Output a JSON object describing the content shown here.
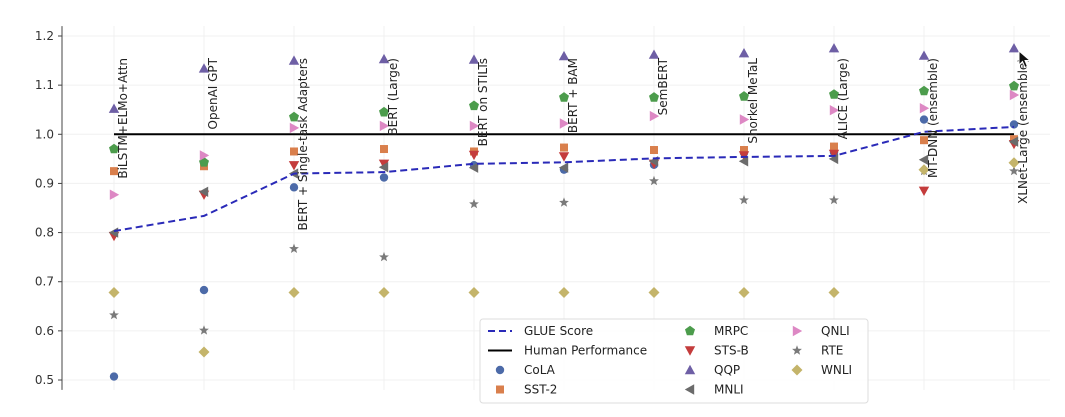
{
  "chart_data": {
    "type": "scatter",
    "title": "",
    "xlabel": "",
    "ylabel": "",
    "ylim": [
      0.48,
      1.22
    ],
    "yticks": [
      "0.5",
      "0.6",
      "0.7",
      "0.8",
      "0.9",
      "1.0",
      "1.1",
      "1.2"
    ],
    "grid": true,
    "legend_position": "bottom-center",
    "categories": [
      "BiLSTM+ELMo+Attn",
      "OpenAI GPT",
      "BERT + Single-task Adapters",
      "BERT (Large)",
      "BERT on STILTs",
      "BERT + BAM",
      "SemBERT",
      "Snorkel MeTaL",
      "ALICE (Large)",
      "MT-DNN (ensemble)",
      "XLNet-Large (ensemble)"
    ],
    "series": [
      {
        "name": "GLUE Score",
        "kind": "line",
        "style": "dashed",
        "color": "#2a2ab8",
        "values": [
          0.803,
          0.834,
          0.92,
          0.923,
          0.94,
          0.943,
          0.951,
          0.954,
          0.956,
          1.005,
          1.015
        ]
      },
      {
        "name": "Human Performance",
        "kind": "hline",
        "color": "#000000",
        "value": 1.0
      },
      {
        "name": "CoLA",
        "marker": "circle",
        "color": "#4c6aa8",
        "values": [
          0.507,
          0.683,
          0.892,
          0.912,
          0.937,
          0.928,
          0.938,
          0.962,
          0.963,
          1.03,
          1.02
        ]
      },
      {
        "name": "SST-2",
        "marker": "square",
        "color": "#d97f4c",
        "values": [
          0.925,
          0.935,
          0.965,
          0.97,
          0.965,
          0.973,
          0.968,
          0.968,
          0.975,
          0.988,
          0.99
        ]
      },
      {
        "name": "MRPC",
        "marker": "pentagon",
        "color": "#4c9c4c",
        "values": [
          0.97,
          0.943,
          1.035,
          1.045,
          1.058,
          1.075,
          1.075,
          1.077,
          1.081,
          1.088,
          1.098
        ]
      },
      {
        "name": "STS-B",
        "marker": "triangle-down",
        "color": "#c43c3c",
        "values": [
          0.793,
          0.877,
          0.937,
          0.94,
          0.958,
          0.955,
          0.94,
          0.957,
          0.96,
          0.885,
          0.98
        ]
      },
      {
        "name": "QQP",
        "marker": "triangle-up",
        "color": "#6e5fa5",
        "values": [
          1.052,
          1.134,
          1.15,
          1.153,
          1.152,
          1.159,
          1.162,
          1.165,
          1.175,
          1.16,
          1.175
        ]
      },
      {
        "name": "MNLI",
        "marker": "triangle-left",
        "color": "#6b6b6b",
        "values": [
          0.8,
          0.883,
          0.92,
          0.933,
          0.932,
          0.932,
          0.945,
          0.945,
          0.95,
          0.948,
          0.985
        ]
      },
      {
        "name": "QNLI",
        "marker": "triangle-right",
        "color": "#dd88c4",
        "values": [
          0.877,
          0.957,
          1.013,
          1.017,
          1.017,
          1.022,
          1.037,
          1.03,
          1.049,
          1.053,
          1.08
        ]
      },
      {
        "name": "RTE",
        "marker": "star",
        "color": "#7a7a7a",
        "values": [
          0.632,
          0.601,
          0.767,
          0.75,
          0.858,
          0.861,
          0.905,
          0.866,
          0.866,
          0.925,
          0.925
        ]
      },
      {
        "name": "WNLI",
        "marker": "diamond",
        "color": "#c4b46a",
        "values": [
          0.678,
          0.557,
          0.678,
          0.678,
          0.678,
          0.678,
          0.678,
          0.678,
          0.678,
          0.928,
          0.942
        ]
      }
    ],
    "legend_columns": [
      [
        "GLUE Score",
        "Human Performance",
        "CoLA",
        "SST-2"
      ],
      [
        "MRPC",
        "STS-B",
        "QQP",
        "MNLI"
      ],
      [
        "QNLI",
        "RTE",
        "WNLI"
      ]
    ]
  },
  "cursor": {
    "icon": "mouse-pointer-icon"
  }
}
